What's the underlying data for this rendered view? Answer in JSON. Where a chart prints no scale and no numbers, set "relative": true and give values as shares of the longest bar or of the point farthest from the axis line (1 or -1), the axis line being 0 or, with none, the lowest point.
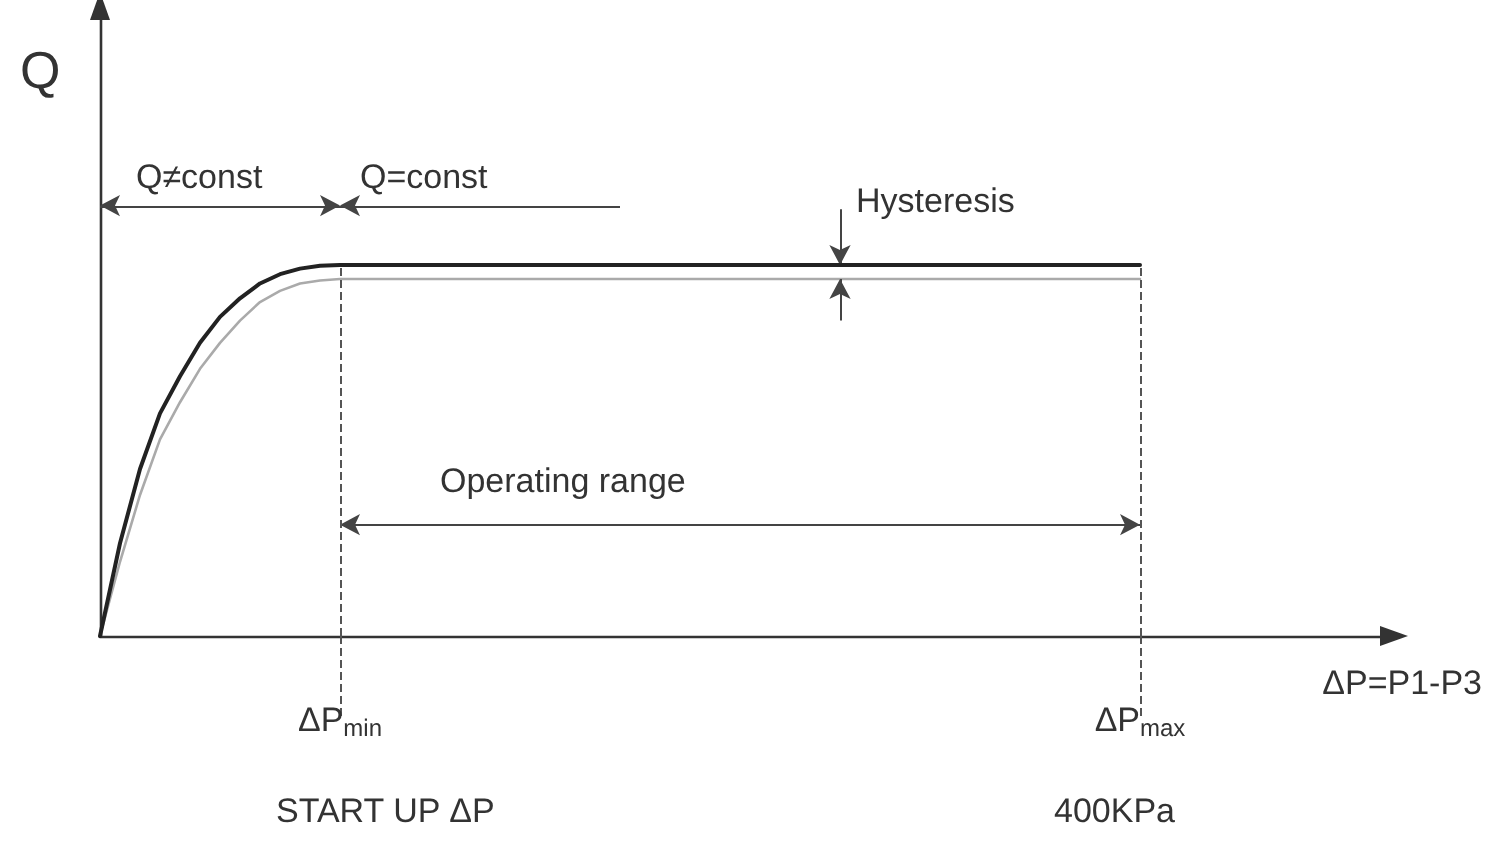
{
  "chart_data": {
    "type": "line",
    "relative": true,
    "ylabel": "Q",
    "xlabel": "ΔP=P1-P3",
    "categories": [
      null,
      null,
      null,
      null,
      null,
      null,
      null,
      null,
      null,
      null,
      null,
      null,
      "ΔP$_{min}$",
      null,
      null,
      null,
      null,
      null,
      null,
      null,
      null,
      null,
      null,
      null,
      null,
      null,
      null,
      null,
      null,
      null,
      null,
      null,
      null,
      null,
      null,
      null,
      null,
      null,
      null,
      null,
      null,
      null,
      null,
      null,
      null,
      null,
      null,
      null,
      null,
      null,
      null,
      null,
      "ΔP$_{max}$",
      null,
      null,
      null,
      null,
      null,
      null,
      null,
      null,
      null,
      null,
      null,
      null
    ],
    "series": [
      {
        "color": "#222222",
        "values": [
          0,
          0.25,
          0.45,
          0.6,
          0.7,
          0.79,
          0.86,
          0.91,
          0.95,
          0.975,
          0.99,
          0.998,
          1,
          1,
          1,
          1,
          1,
          1,
          1,
          1,
          1,
          1,
          1,
          1,
          1,
          1,
          1,
          1,
          1,
          1,
          1,
          1,
          1,
          1,
          1,
          1,
          1,
          1,
          1,
          1,
          1,
          1,
          1,
          1,
          1,
          1,
          1,
          1,
          1,
          1,
          1,
          1,
          1,
          null,
          null,
          null,
          null,
          null,
          null,
          null,
          null,
          null,
          null,
          null,
          null
        ]
      },
      {
        "color": "#aaaaaa",
        "values": [
          0,
          0.2,
          0.38,
          0.53,
          0.63,
          0.72,
          0.79,
          0.85,
          0.9,
          0.93,
          0.95,
          0.958,
          0.962,
          0.962,
          0.962,
          0.962,
          0.962,
          0.962,
          0.962,
          0.962,
          0.962,
          0.962,
          0.962,
          0.962,
          0.962,
          0.962,
          0.962,
          0.962,
          0.962,
          0.962,
          0.962,
          0.962,
          0.962,
          0.962,
          0.962,
          0.962,
          0.962,
          0.962,
          0.962,
          0.962,
          0.962,
          0.962,
          0.962,
          0.962,
          0.962,
          0.962,
          0.962,
          0.962,
          0.962,
          0.962,
          0.962,
          0.962,
          0.962,
          null,
          null,
          null,
          null,
          null,
          null,
          null,
          null,
          null,
          null,
          null,
          null
        ]
      }
    ],
    "ref_lines": [
      {
        "axis": "x",
        "value": "ΔP$_{min}$",
        "line_style": "dashed"
      },
      {
        "axis": "x",
        "value": "ΔP$_{max}$",
        "line_style": "dashed"
      }
    ],
    "annotations": [
      "Q≠const",
      "Q=const",
      "Hysteresis",
      "Operating range",
      "START UP ΔP",
      "400KPa"
    ],
    "marker": "none",
    "line_style": "solid"
  }
}
